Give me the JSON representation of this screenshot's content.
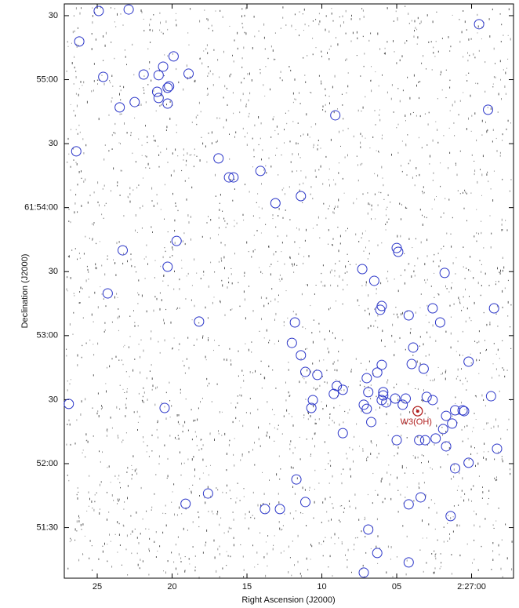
{
  "chart_data": {
    "type": "scatter",
    "xlabel": "Right Ascension (J2000)",
    "ylabel": "Declination (J2000)",
    "xlim": [
      27.2,
      -2.8
    ],
    "ylim": [
      -53.7,
      215.5
    ],
    "xticks": [
      25,
      20,
      15,
      10,
      {
        "value": 5,
        "label": "05"
      },
      {
        "value": 0,
        "label": "2:27:00"
      }
    ],
    "yticks": [
      {
        "value": -30,
        "label": "51:30"
      },
      {
        "value": 0,
        "label": "52:00"
      },
      {
        "value": 30,
        "label": "30"
      },
      {
        "value": 60,
        "label": "53:00"
      },
      {
        "value": 90,
        "label": "30"
      },
      {
        "value": 120,
        "label": "61:54:00"
      },
      {
        "value": 150,
        "label": "30"
      },
      {
        "value": 180,
        "label": "55:00"
      },
      {
        "value": 210,
        "label": "30"
      }
    ],
    "color": "#2a35c8",
    "x": [
      24.9,
      22.9,
      26.2,
      24.6,
      19.9,
      20.6,
      21.9,
      20.9,
      18.9,
      20.2,
      20.3,
      21.0,
      20.9,
      22.5,
      20.3,
      23.5,
      -0.5,
      -1.1,
      9.1,
      26.4,
      16.9,
      16.2,
      15.9,
      14.1,
      11.4,
      13.1,
      19.7,
      23.3,
      20.3,
      24.3,
      5.0,
      4.9,
      7.3,
      6.5,
      1.8,
      6.0,
      6.1,
      2.6,
      -1.5,
      4.2,
      18.2,
      11.8,
      2.1,
      12.0,
      3.9,
      11.4,
      11.1,
      10.3,
      3.2,
      4.0,
      0.2,
      6.0,
      7.0,
      6.3,
      9.0,
      8.6,
      9.2,
      6.9,
      5.9,
      5.9,
      6.0,
      5.7,
      5.1,
      4.6,
      4.4,
      3.0,
      2.6,
      26.9,
      20.5,
      10.6,
      10.7,
      7.2,
      7.0,
      6.7,
      1.7,
      1.1,
      0.6,
      0.5,
      -1.3,
      1.3,
      1.9,
      8.6,
      5.0,
      3.5,
      3.1,
      2.4,
      1.7,
      -1.7,
      1.1,
      0.2,
      11.7,
      17.6,
      19.1,
      11.1,
      3.4,
      4.2,
      13.8,
      12.8,
      1.4,
      6.9,
      6.3,
      4.2,
      7.2
    ],
    "y": [
      212.2,
      212.9,
      197.9,
      181.3,
      190.9,
      186.1,
      182.4,
      182.1,
      182.8,
      176.9,
      176.2,
      174.3,
      171.4,
      169.5,
      168.8,
      167.0,
      206.0,
      165.9,
      163.3,
      146.4,
      143.1,
      134.2,
      134.2,
      137.2,
      125.4,
      122.1,
      104.4,
      100.0,
      92.3,
      79.8,
      101.1,
      99.3,
      91.2,
      85.7,
      89.4,
      73.9,
      72.1,
      72.8,
      72.8,
      69.5,
      66.6,
      66.2,
      66.2,
      56.6,
      54.4,
      50.8,
      43.0,
      41.6,
      44.5,
      46.7,
      47.8,
      46.3,
      40.1,
      42.7,
      36.4,
      34.6,
      32.7,
      33.5,
      33.5,
      32.0,
      29.8,
      28.7,
      30.5,
      27.6,
      30.5,
      31.3,
      29.8,
      28.0,
      26.1,
      29.8,
      26.1,
      27.6,
      25.7,
      19.5,
      22.4,
      25.0,
      25.0,
      24.6,
      31.6,
      18.8,
      16.2,
      14.3,
      11.0,
      11.0,
      11.0,
      11.8,
      8.1,
      7.0,
      -2.2,
      0.4,
      -7.4,
      -14.0,
      -18.8,
      -18.0,
      -15.8,
      -19.1,
      -21.3,
      -21.3,
      -24.6,
      -30.9,
      -41.9,
      -46.3,
      -51.1
    ],
    "annotations": [
      {
        "text": "W3(OH)",
        "x": 3.6,
        "y": 24.6,
        "color": "#b01e1e"
      }
    ]
  }
}
